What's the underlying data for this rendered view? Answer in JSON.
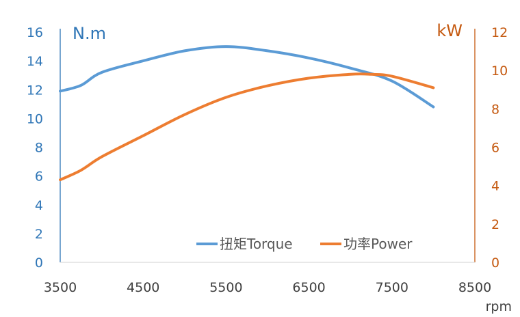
{
  "chart_data": {
    "type": "line",
    "x_axis": {
      "label": "rpm",
      "range": [
        3500,
        8500
      ],
      "ticks": [
        3500,
        4500,
        5500,
        6500,
        7500,
        8500
      ]
    },
    "y_axis_left": {
      "label": "N.m",
      "range": [
        0,
        16
      ],
      "ticks": [
        0,
        2,
        4,
        6,
        8,
        10,
        12,
        14,
        16
      ],
      "color": "#2E75B6"
    },
    "y_axis_right": {
      "label": "kW",
      "range": [
        0,
        12
      ],
      "ticks": [
        0,
        2,
        4,
        6,
        8,
        10,
        12
      ],
      "color": "#C55A11"
    },
    "series": [
      {
        "name": "扭矩Torque",
        "axis": "left",
        "color": "#5B9BD5",
        "x": [
          3500,
          3750,
          4000,
          4500,
          5000,
          5500,
          6000,
          6500,
          7000,
          7500,
          8000
        ],
        "y": [
          11.9,
          12.3,
          13.2,
          14.0,
          14.7,
          15.0,
          14.7,
          14.2,
          13.5,
          12.6,
          10.8
        ]
      },
      {
        "name": "功率Power",
        "axis": "right",
        "color": "#ED7D31",
        "x": [
          3500,
          3750,
          4000,
          4500,
          5000,
          5500,
          6000,
          6500,
          7000,
          7250,
          7500,
          8000
        ],
        "y": [
          4.3,
          4.8,
          5.5,
          6.6,
          7.7,
          8.6,
          9.2,
          9.6,
          9.8,
          9.8,
          9.7,
          9.1
        ]
      }
    ],
    "grid": false,
    "legend_position": "bottom-center"
  }
}
